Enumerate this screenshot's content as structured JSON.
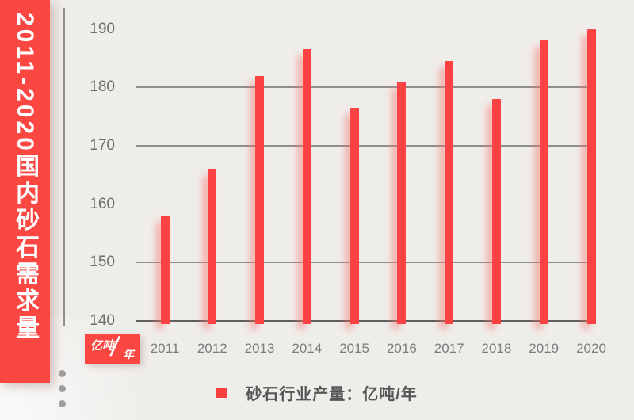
{
  "banner": {
    "title": "2011-2020国内砂石需求量",
    "color": "#fa4742"
  },
  "chart_data": {
    "type": "bar",
    "title": "2011-2020国内砂石需求量",
    "categories": [
      "2011",
      "2012",
      "2013",
      "2014",
      "2015",
      "2016",
      "2017",
      "2018",
      "2019",
      "2020"
    ],
    "series": [
      {
        "name": "砂石行业产量",
        "values": [
          158,
          166,
          182,
          186.5,
          176.5,
          181,
          184.5,
          178,
          188,
          190
        ]
      }
    ],
    "ylabel": "亿吨/年",
    "ylim": [
      140,
      190
    ],
    "yticks": [
      140,
      150,
      160,
      170,
      180,
      190
    ],
    "grid": true,
    "bar_color": "#fd4243",
    "legend": {
      "label": "砂石行业产量：亿吨/年",
      "position": "bottom"
    },
    "unit_badge": {
      "top": "亿吨",
      "slash": "/",
      "bottom": "年"
    }
  },
  "decor": {
    "dots_count": 3
  }
}
